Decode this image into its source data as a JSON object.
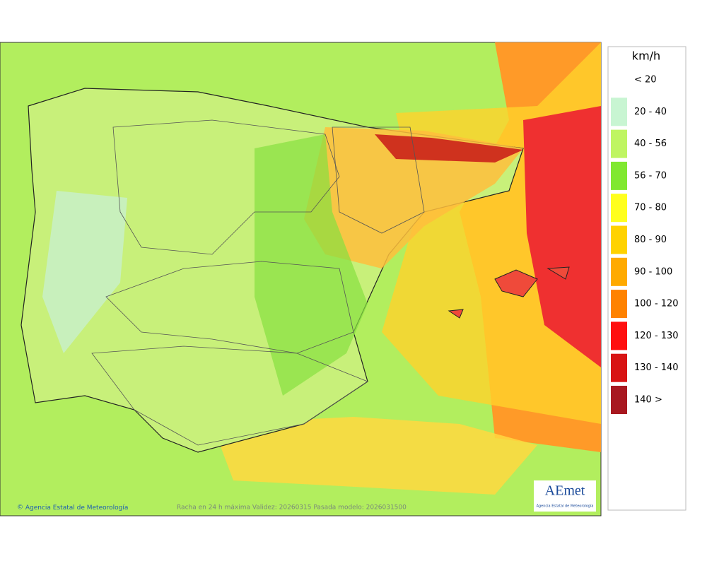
{
  "legend": {
    "title": "km/h",
    "items": [
      {
        "label": "< 20",
        "color": "#ffffff"
      },
      {
        "label": "20 - 40",
        "color": "#c8f5d2"
      },
      {
        "label": "40 - 56",
        "color": "#bff562"
      },
      {
        "label": "56 - 70",
        "color": "#80e830"
      },
      {
        "label": "70 - 80",
        "color": "#ffff1e"
      },
      {
        "label": "80 - 90",
        "color": "#ffd200"
      },
      {
        "label": "90 - 100",
        "color": "#ffaa00"
      },
      {
        "label": "100 - 120",
        "color": "#ff8200"
      },
      {
        "label": "120 - 130",
        "color": "#ff1010"
      },
      {
        "label": "130 - 140",
        "color": "#d81414"
      },
      {
        "label": "140 >",
        "color": "#a81820"
      }
    ]
  },
  "footer": {
    "credit": "Agencia Estatal de Meteorología",
    "caption": "Racha en 24 h máxima  Validez: 20260315 Pasada modelo: 2026031500"
  },
  "logo": {
    "text": "AEmet",
    "subtitle": "Agencia Estatal de Meteorología"
  }
}
